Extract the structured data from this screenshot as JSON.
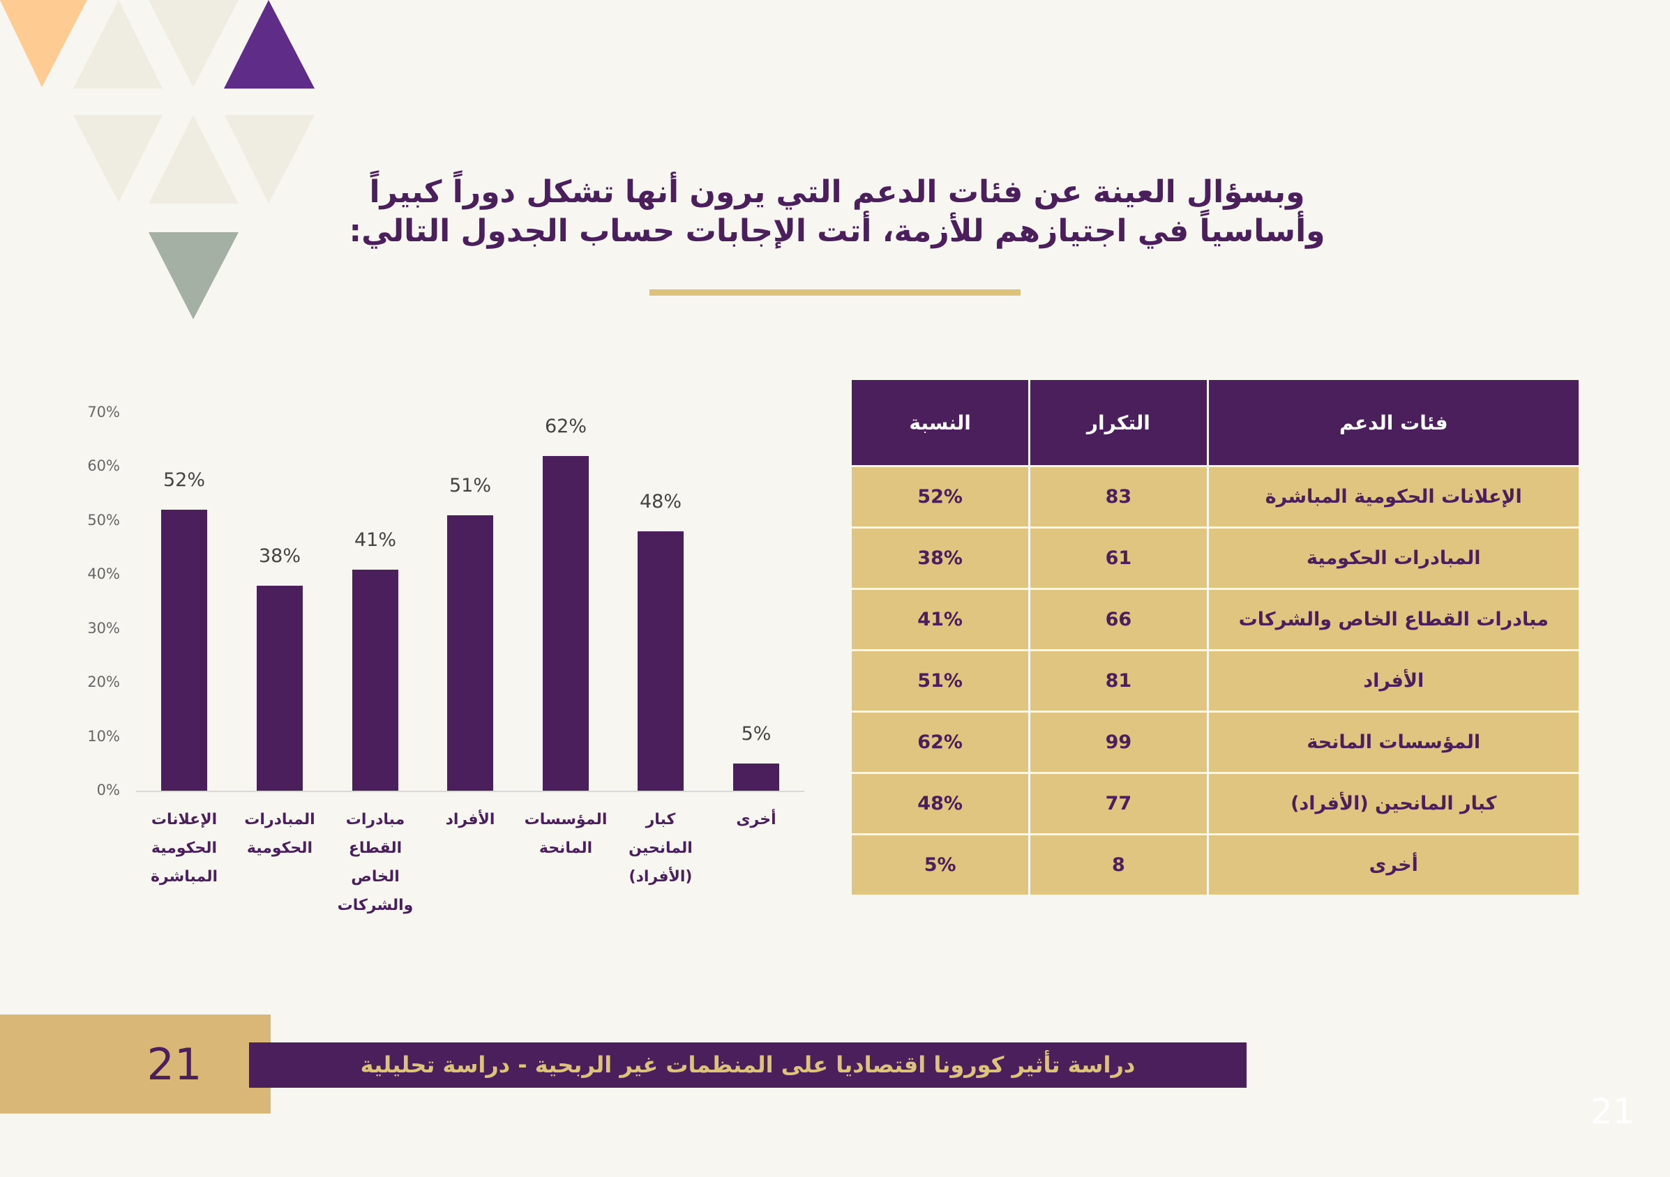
{
  "title": {
    "line1": "وبسؤال العينة عن فئات الدعم التي يرون أنها تشكل دوراً كبيراً",
    "line2": "وأساسياً في اجتيازهم للأزمة، أتت الإجابات حساب الجدول التالي:"
  },
  "table": {
    "headers": {
      "category": "فئات الدعم",
      "frequency": "التكرار",
      "percent": "النسبة"
    },
    "rows": [
      {
        "category": "الإعلانات الحكومية المباشرة",
        "frequency": "83",
        "percent": "52%"
      },
      {
        "category": "المبادرات الحكومية",
        "frequency": "61",
        "percent": "38%"
      },
      {
        "category": "مبادرات القطاع الخاص والشركات",
        "frequency": "66",
        "percent": "41%"
      },
      {
        "category": "الأفراد",
        "frequency": "81",
        "percent": "51%"
      },
      {
        "category": "المؤسسات المانحة",
        "frequency": "99",
        "percent": "62%"
      },
      {
        "category": "كبار المانحين (الأفراد)",
        "frequency": "77",
        "percent": "48%"
      },
      {
        "category": "أخرى",
        "frequency": "8",
        "percent": "5%"
      }
    ]
  },
  "chart_data": {
    "type": "bar",
    "title": "",
    "xlabel": "",
    "ylabel": "",
    "ylim": [
      0,
      70
    ],
    "yticks": [
      "0%",
      "10%",
      "20%",
      "30%",
      "40%",
      "50%",
      "60%",
      "70%"
    ],
    "categories": [
      [
        "الإعلانات",
        "الحكومية",
        "المباشرة"
      ],
      [
        "المبادرات",
        "الحكومية"
      ],
      [
        "مبادرات",
        "القطاع",
        "الخاص",
        "والشركات"
      ],
      [
        "الأفراد"
      ],
      [
        "المؤسسات",
        "المانحة"
      ],
      [
        "كبار المانحين",
        "(الأفراد)"
      ],
      [
        "أخرى"
      ]
    ],
    "values": [
      52,
      38,
      41,
      51,
      62,
      48,
      5
    ],
    "data_labels": [
      "52%",
      "38%",
      "41%",
      "51%",
      "62%",
      "48%",
      "5%"
    ],
    "bar_color": "#4a1f5c",
    "grid": false
  },
  "footer": {
    "page_number": "21",
    "report_title": "دراسة تأثير كورونا اقتصاديا على المنظمات غير الربحية - دراسة تحليلية",
    "page_number_corner": "21"
  },
  "colors": {
    "purple": "#4a1f5c",
    "gold": "#dfc57f",
    "background": "#f7f6f0"
  }
}
